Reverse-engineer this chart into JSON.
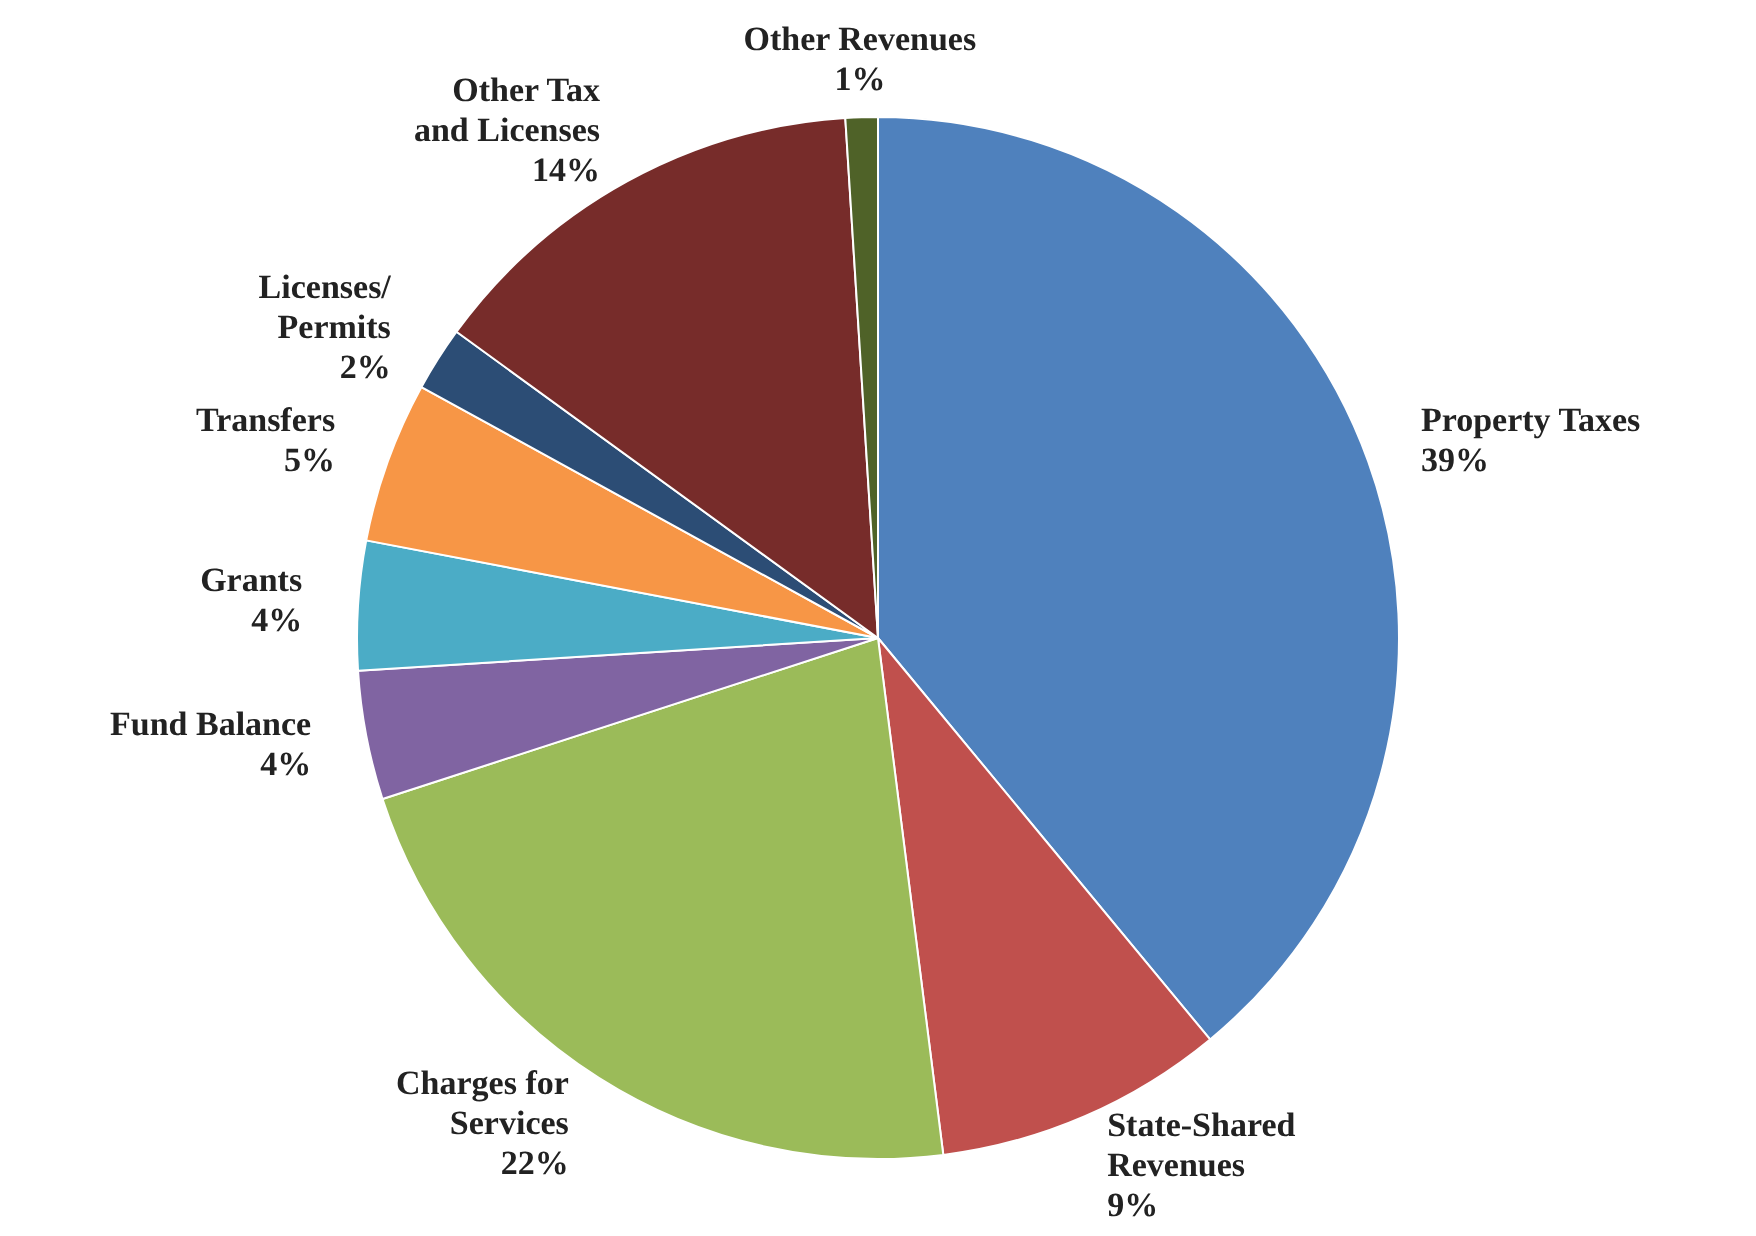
{
  "chart_data": {
    "type": "pie",
    "categories": [
      "Property Taxes",
      "State-Shared\nRevenues",
      "Charges for\nServices",
      "Fund Balance",
      "Grants",
      "Transfers",
      "Licenses/\nPermits",
      "Other Tax\nand Licenses",
      "Other Revenues"
    ],
    "values": [
      39,
      9,
      22,
      4,
      4,
      5,
      2,
      14,
      1
    ],
    "value_labels": [
      "39%",
      "9%",
      "22%",
      "4%",
      "4%",
      "5%",
      "2%",
      "14%",
      "1%"
    ],
    "colors": [
      "#4f81bd",
      "#c0504d",
      "#9bbb59",
      "#8064a2",
      "#4bacc6",
      "#f79646",
      "#2c4d75",
      "#772c2a",
      "#4f6228"
    ],
    "legend": false
  }
}
